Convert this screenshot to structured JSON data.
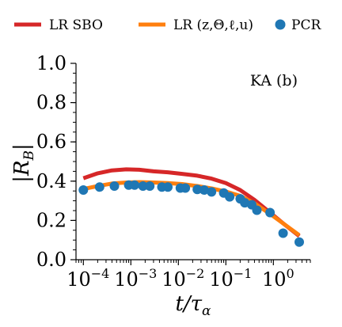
{
  "chart_data": {
    "type": "line",
    "annotation": "KA (b)",
    "xlabel_main": "t/τ",
    "xlabel_sub": "α",
    "ylabel": "|R",
    "ylabel_sub": "B",
    "ylabel_close": "|",
    "xscale": "log",
    "xlim": [
      7e-05,
      6
    ],
    "ylim": [
      0.0,
      1.0
    ],
    "yticks": [
      0.0,
      0.2,
      0.4,
      0.6,
      0.8,
      1.0
    ],
    "ytick_labels": [
      "0.0",
      "0.2",
      "0.4",
      "0.6",
      "0.8",
      "1.0"
    ],
    "xticks": [
      0.0001,
      0.001,
      0.01,
      0.1,
      1
    ],
    "xtick_bases": [
      "10",
      "10",
      "10",
      "10",
      "10"
    ],
    "xtick_exps": [
      "−4",
      "−3",
      "−2",
      "−1",
      "0"
    ],
    "grid": false,
    "legend_position": "top",
    "series": [
      {
        "name": "LR SBO",
        "kind": "line",
        "color": "#d62728",
        "x": [
          0.0001,
          0.0002,
          0.0004,
          0.0008,
          0.0015,
          0.003,
          0.006,
          0.012,
          0.025,
          0.05,
          0.1,
          0.2,
          0.4,
          0.8,
          1.6,
          3.5
        ],
        "y": [
          0.415,
          0.44,
          0.455,
          0.46,
          0.458,
          0.45,
          0.445,
          0.437,
          0.428,
          0.413,
          0.39,
          0.355,
          0.305,
          0.245,
          0.185,
          0.12
        ]
      },
      {
        "name": "LR (z,Θ,ℓ,u)",
        "kind": "line",
        "color": "#ff7f0e",
        "x": [
          0.0001,
          0.0002,
          0.0004,
          0.0008,
          0.0015,
          0.003,
          0.006,
          0.012,
          0.025,
          0.05,
          0.1,
          0.2,
          0.4,
          0.8,
          1.6,
          3.5
        ],
        "y": [
          0.36,
          0.375,
          0.388,
          0.393,
          0.395,
          0.393,
          0.39,
          0.385,
          0.375,
          0.363,
          0.347,
          0.325,
          0.287,
          0.238,
          0.185,
          0.125
        ]
      },
      {
        "name": "PCR",
        "kind": "scatter",
        "color": "#1f77b4",
        "x": [
          0.0001,
          0.00022,
          0.00045,
          0.0009,
          0.0012,
          0.0018,
          0.0025,
          0.0045,
          0.006,
          0.011,
          0.014,
          0.025,
          0.035,
          0.05,
          0.09,
          0.12,
          0.2,
          0.25,
          0.35,
          0.45,
          0.85,
          1.6,
          3.5
        ],
        "y": [
          0.355,
          0.37,
          0.375,
          0.38,
          0.38,
          0.375,
          0.375,
          0.37,
          0.37,
          0.365,
          0.365,
          0.358,
          0.355,
          0.345,
          0.34,
          0.32,
          0.31,
          0.29,
          0.28,
          0.252,
          0.24,
          0.135,
          0.09
        ]
      }
    ]
  }
}
